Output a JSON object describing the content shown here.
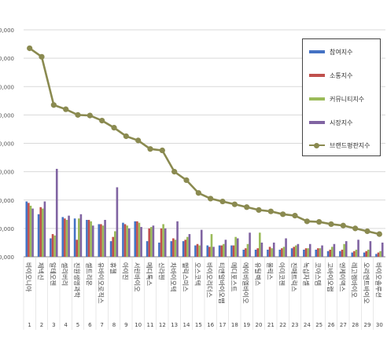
{
  "chart_data": {
    "type": "bar",
    "categories": [
      "바이오니아",
      "제넥신",
      "알테오젠",
      "셀리버리",
      "진원생명과학",
      "셀트리온",
      "유바이오로직스",
      "휴젤",
      "아이진",
      "서린바이오",
      "메디톡스",
      "신라젠",
      "차바이오텍",
      "헬릭스미스",
      "오스코텍",
      "바이오리더스",
      "티앤알바이오팹",
      "메디포스트",
      "에이비엘바이오",
      "유틸렉스",
      "올릭스",
      "아미코젠",
      "진매트릭스",
      "녹십자셀",
      "코아스템",
      "고바이오랩",
      "엔케이맥스",
      "레고켐바이오",
      "오리엔트바이오",
      "바이오솔루션"
    ],
    "index_labels": [
      "1",
      "2",
      "3",
      "4",
      "5",
      "6",
      "7",
      "8",
      "9",
      "10",
      "11",
      "12",
      "13",
      "14",
      "15",
      "16",
      "17",
      "18",
      "19",
      "20",
      "21",
      "22",
      "23",
      "24",
      "25",
      "26",
      "27",
      "28",
      "29",
      "30"
    ],
    "y_tick_labels": [
      "0,000",
      "00,000",
      "00,000",
      "00,000",
      "00,000",
      "00,000",
      "00,000",
      "00,000",
      "00,000"
    ],
    "ylim": [
      0,
      800000
    ],
    "y_ticks": [
      0,
      100000,
      200000,
      300000,
      400000,
      500000,
      600000,
      700000,
      800000
    ],
    "series": [
      {
        "name": "참여지수",
        "kind": "bar",
        "color": "#4472c4",
        "values": [
          195000,
          150000,
          65000,
          140000,
          135000,
          130000,
          115000,
          55000,
          120000,
          125000,
          55000,
          50000,
          55000,
          55000,
          40000,
          40000,
          40000,
          40000,
          25000,
          25000,
          25000,
          25000,
          30000,
          25000,
          25000,
          20000,
          20000,
          15000,
          15000,
          10000
        ]
      },
      {
        "name": "소통지수",
        "kind": "bar",
        "color": "#c0504d",
        "values": [
          190000,
          175000,
          80000,
          135000,
          60000,
          130000,
          115000,
          70000,
          115000,
          125000,
          100000,
          100000,
          65000,
          60000,
          45000,
          35000,
          40000,
          40000,
          30000,
          30000,
          35000,
          30000,
          35000,
          30000,
          30000,
          25000,
          25000,
          20000,
          20000,
          15000
        ]
      },
      {
        "name": "커뮤니티지수",
        "kind": "bar",
        "color": "#9bbb59",
        "values": [
          180000,
          170000,
          75000,
          130000,
          135000,
          125000,
          110000,
          90000,
          110000,
          120000,
          105000,
          115000,
          60000,
          70000,
          40000,
          80000,
          45000,
          70000,
          45000,
          85000,
          30000,
          35000,
          40000,
          30000,
          30000,
          35000,
          45000,
          25000,
          25000,
          20000
        ]
      },
      {
        "name": "시장지수",
        "kind": "bar",
        "color": "#8064a2",
        "values": [
          170000,
          195000,
          310000,
          145000,
          150000,
          110000,
          130000,
          245000,
          100000,
          105000,
          110000,
          100000,
          125000,
          80000,
          95000,
          35000,
          60000,
          65000,
          85000,
          50000,
          50000,
          65000,
          45000,
          45000,
          40000,
          45000,
          55000,
          60000,
          55000,
          50000
        ]
      },
      {
        "name": "브랜드평판지수",
        "kind": "line",
        "color": "#8a8a50",
        "values": [
          735000,
          705000,
          535000,
          520000,
          500000,
          498000,
          480000,
          455000,
          425000,
          410000,
          380000,
          375000,
          300000,
          270000,
          225000,
          205000,
          195000,
          185000,
          175000,
          165000,
          160000,
          150000,
          145000,
          125000,
          123000,
          115000,
          110000,
          100000,
          90000,
          80000
        ]
      }
    ]
  }
}
